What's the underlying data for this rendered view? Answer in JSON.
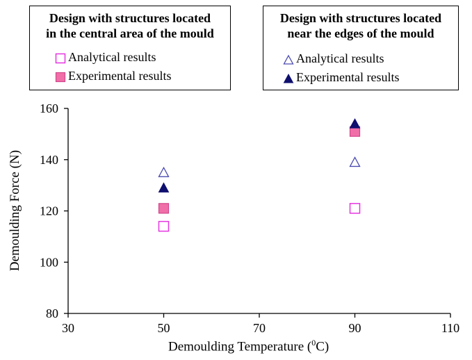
{
  "chart_data": {
    "type": "scatter",
    "xlabel_prefix": "Demoulding Temperature (",
    "xlabel_sup": "0",
    "xlabel_suffix": "C)",
    "ylabel": "Demoulding Force (N)",
    "xlim": [
      30,
      110
    ],
    "ylim": [
      80,
      160
    ],
    "xticks": [
      30,
      50,
      70,
      90,
      110
    ],
    "yticks": [
      80,
      100,
      120,
      140,
      160
    ],
    "grid": false,
    "legend_groups": [
      {
        "title_line1": "Design with structures located",
        "title_line2": "in the central area of the mould",
        "entries": [
          "Analytical results",
          "Experimental results"
        ]
      },
      {
        "title_line1": "Design with structures located",
        "title_line2": "near the edges of the mould",
        "entries": [
          "Analytical results",
          "Experimental results"
        ]
      }
    ],
    "series": [
      {
        "group": "central",
        "name": "Analytical results",
        "marker": "square-open",
        "color": "#e535e0",
        "points": [
          {
            "x": 50,
            "y": 114
          },
          {
            "x": 90,
            "y": 121
          }
        ]
      },
      {
        "group": "central",
        "name": "Experimental results",
        "marker": "square-filled",
        "color": "#f06fa8",
        "points": [
          {
            "x": 50,
            "y": 121
          },
          {
            "x": 90,
            "y": 151
          }
        ]
      },
      {
        "group": "edges",
        "name": "Analytical results",
        "marker": "triangle-open",
        "color": "#4a4ab0",
        "points": [
          {
            "x": 50,
            "y": 135
          },
          {
            "x": 90,
            "y": 139
          }
        ]
      },
      {
        "group": "edges",
        "name": "Experimental results",
        "marker": "triangle-filled",
        "color": "#0f0f6e",
        "points": [
          {
            "x": 50,
            "y": 129
          },
          {
            "x": 90,
            "y": 154
          }
        ]
      }
    ]
  }
}
